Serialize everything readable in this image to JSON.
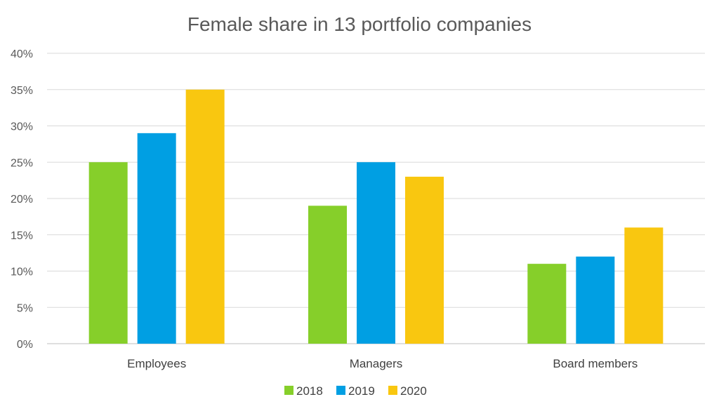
{
  "chart_data": {
    "type": "bar",
    "title": "Female share in 13 portfolio companies",
    "categories": [
      "Employees",
      "Managers",
      "Board members"
    ],
    "series": [
      {
        "name": "2018",
        "color": "#86cf2a",
        "values": [
          25,
          19,
          11
        ]
      },
      {
        "name": "2019",
        "color": "#009fe3",
        "values": [
          29,
          25,
          12
        ]
      },
      {
        "name": "2020",
        "color": "#f9c710",
        "values": [
          35,
          23,
          16
        ]
      }
    ],
    "y_ticks": [
      "0%",
      "5%",
      "10%",
      "15%",
      "20%",
      "25%",
      "30%",
      "35%",
      "40%"
    ],
    "ylim": [
      0,
      40
    ],
    "y_unit": "%",
    "grid": true,
    "legend_position": "bottom"
  }
}
